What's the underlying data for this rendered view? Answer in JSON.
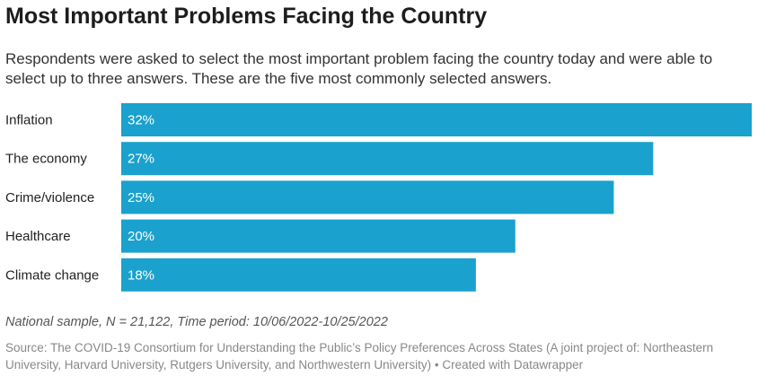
{
  "title": "Most Important Problems Facing the Country",
  "description": "Respondents were asked to select the most important problem facing the country today and were able to select up to three answers. These are the five most commonly selected answers.",
  "chart_data": {
    "type": "bar",
    "orientation": "horizontal",
    "categories": [
      "Inflation",
      "The economy",
      "Crime/violence",
      "Healthcare",
      "Climate change"
    ],
    "values": [
      32,
      27,
      25,
      20,
      18
    ],
    "value_labels": [
      "32%",
      "27%",
      "25%",
      "20%",
      "18%"
    ],
    "unit": "%",
    "color": "#1aa1cd",
    "grid": false
  },
  "notes": "National sample, N = 21,122, Time period: 10/06/2022-10/25/2022",
  "source": "Source: The COVID-19 Consortium for Understanding the Public’s Policy Preferences Across States (A joint project of: Northeastern University, Harvard University, Rutgers University, and Northwestern University) • Created with Datawrapper"
}
